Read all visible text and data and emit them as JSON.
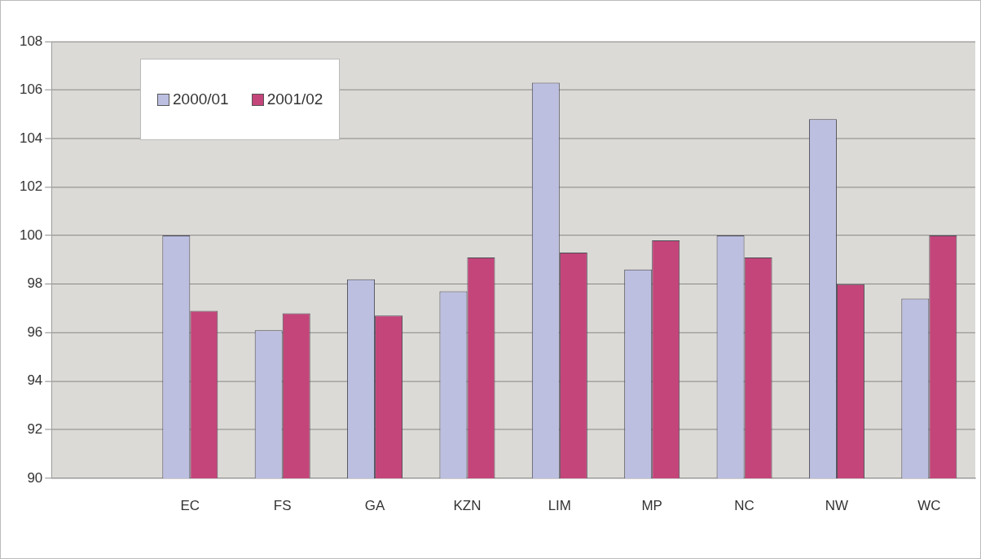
{
  "chart_data": {
    "type": "bar",
    "categories": [
      null,
      "EC",
      "FS",
      "GA",
      "KZN",
      "LIM",
      "MP",
      "NC",
      "NW",
      "WC"
    ],
    "series": [
      {
        "name": "2000/01",
        "color": "#bcbfe0",
        "values": [
          null,
          100.0,
          96.1,
          98.2,
          97.7,
          106.3,
          98.6,
          100.0,
          104.8,
          97.4
        ]
      },
      {
        "name": "2001/02",
        "color": "#c4457a",
        "values": [
          null,
          96.9,
          96.8,
          96.7,
          99.1,
          99.3,
          99.8,
          99.1,
          98.0,
          100.0
        ]
      }
    ],
    "ylim": [
      90,
      108
    ],
    "yticks": [
      90,
      92,
      94,
      96,
      98,
      100,
      102,
      104,
      106,
      108
    ],
    "grid": "y",
    "legend": "top left"
  }
}
